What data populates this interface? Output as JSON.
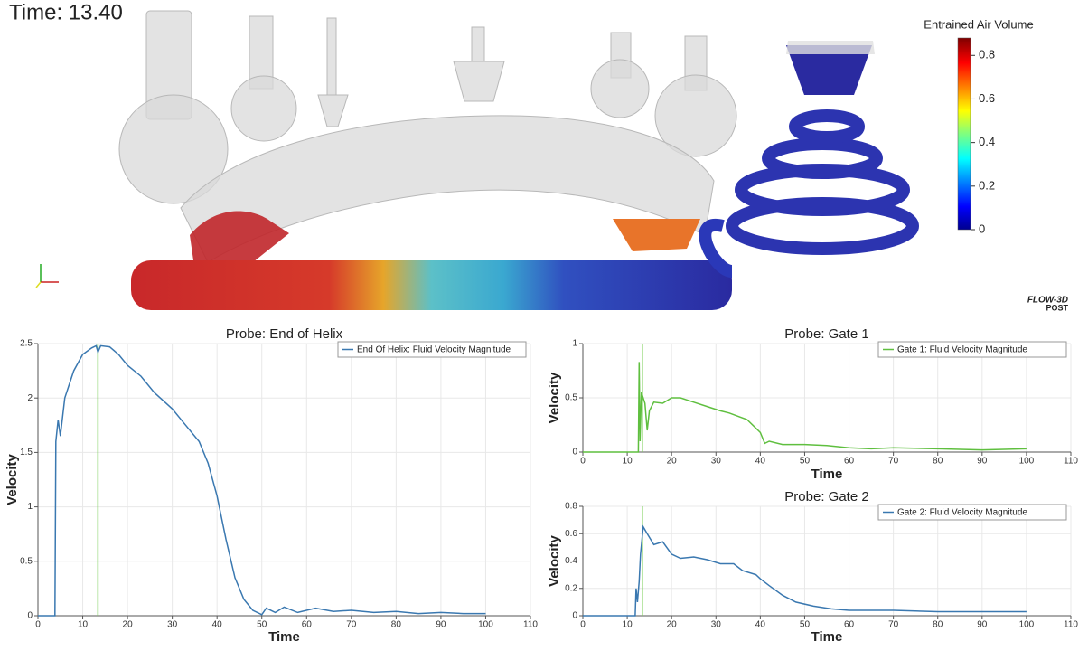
{
  "time_label": "Time: 13.40",
  "colorbar": {
    "title": "Entrained Air Volume",
    "lim": [
      0,
      0.88
    ],
    "ticks": [
      0,
      0.2,
      0.4,
      0.6,
      0.8
    ]
  },
  "logo": {
    "name": "FLOW-3D",
    "sub": "POST"
  },
  "chart_data": [
    {
      "type": "line",
      "title": "Probe: End of Helix",
      "xlabel": "Time",
      "ylabel": "Velocity",
      "xlim": [
        0,
        110
      ],
      "xticks": [
        0,
        10,
        20,
        30,
        40,
        50,
        60,
        70,
        80,
        90,
        100,
        110
      ],
      "ylim": [
        0,
        2.5
      ],
      "yticks": [
        0,
        0.5,
        1,
        1.5,
        2,
        2.5
      ],
      "grid": true,
      "cursor_x": 13.4,
      "cursor_color": "#7ccf5a",
      "x": [
        0,
        3.8,
        4,
        4.5,
        5,
        6,
        8,
        10,
        12,
        13,
        13.4,
        14,
        16,
        18,
        20,
        23,
        26,
        30,
        33,
        36,
        38,
        40,
        42,
        44,
        46,
        48,
        50,
        51,
        53,
        55,
        58,
        62,
        66,
        70,
        75,
        80,
        85,
        90,
        95,
        100
      ],
      "series": [
        {
          "name": "End Of Helix: Fluid Velocity Magnitude",
          "color": "#3a78b0",
          "values": [
            0,
            0,
            1.6,
            1.8,
            1.65,
            2.0,
            2.25,
            2.4,
            2.46,
            2.48,
            2.42,
            2.48,
            2.47,
            2.4,
            2.3,
            2.2,
            2.05,
            1.9,
            1.75,
            1.6,
            1.4,
            1.1,
            0.7,
            0.35,
            0.15,
            0.05,
            0.01,
            0.07,
            0.03,
            0.08,
            0.03,
            0.07,
            0.04,
            0.05,
            0.03,
            0.04,
            0.02,
            0.03,
            0.02,
            0.02
          ]
        }
      ]
    },
    {
      "type": "line",
      "title": "Probe: Gate 1",
      "xlabel": "Time",
      "ylabel": "Velocity",
      "xlim": [
        0,
        110
      ],
      "xticks": [
        0,
        10,
        20,
        30,
        40,
        50,
        60,
        70,
        80,
        90,
        100,
        110
      ],
      "ylim": [
        0,
        1
      ],
      "yticks": [
        0,
        0.5,
        1
      ],
      "grid": true,
      "cursor_x": 13.4,
      "cursor_color": "#7ccf5a",
      "x": [
        0,
        12.5,
        12.7,
        12.9,
        13.2,
        14,
        14.5,
        15,
        16,
        18,
        20,
        22,
        25,
        28,
        31,
        33,
        35,
        37,
        39,
        40,
        41,
        42,
        45,
        50,
        55,
        60,
        65,
        70,
        80,
        90,
        100
      ],
      "series": [
        {
          "name": "Gate 1: Fluid Velocity Magnitude",
          "color": "#5fbf3f",
          "values": [
            0,
            0,
            0.83,
            0.1,
            0.55,
            0.45,
            0.2,
            0.38,
            0.46,
            0.45,
            0.5,
            0.5,
            0.46,
            0.42,
            0.38,
            0.36,
            0.33,
            0.3,
            0.22,
            0.18,
            0.08,
            0.1,
            0.07,
            0.07,
            0.06,
            0.04,
            0.03,
            0.04,
            0.03,
            0.02,
            0.03
          ]
        }
      ]
    },
    {
      "type": "line",
      "title": "Probe: Gate 2",
      "xlabel": "Time",
      "ylabel": "Velocity",
      "xlim": [
        0,
        110
      ],
      "xticks": [
        0,
        10,
        20,
        30,
        40,
        50,
        60,
        70,
        80,
        90,
        100,
        110
      ],
      "ylim": [
        0,
        0.8
      ],
      "yticks": [
        0,
        0.2,
        0.4,
        0.6,
        0.8
      ],
      "grid": true,
      "cursor_x": 13.4,
      "cursor_color": "#7ccf5a",
      "x": [
        0,
        11.8,
        12,
        12.3,
        12.7,
        13,
        13.6,
        14.5,
        16,
        18,
        20,
        22,
        25,
        28,
        31,
        34,
        36,
        39,
        40,
        42,
        45,
        48,
        52,
        56,
        60,
        70,
        80,
        90,
        100
      ],
      "series": [
        {
          "name": "Gate 2: Fluid Velocity Magnitude",
          "color": "#3a78b0",
          "values": [
            0,
            0,
            0.2,
            0.1,
            0.25,
            0.45,
            0.65,
            0.6,
            0.52,
            0.54,
            0.45,
            0.42,
            0.43,
            0.41,
            0.38,
            0.38,
            0.33,
            0.3,
            0.27,
            0.22,
            0.15,
            0.1,
            0.07,
            0.05,
            0.04,
            0.04,
            0.03,
            0.03,
            0.03
          ]
        }
      ]
    }
  ]
}
